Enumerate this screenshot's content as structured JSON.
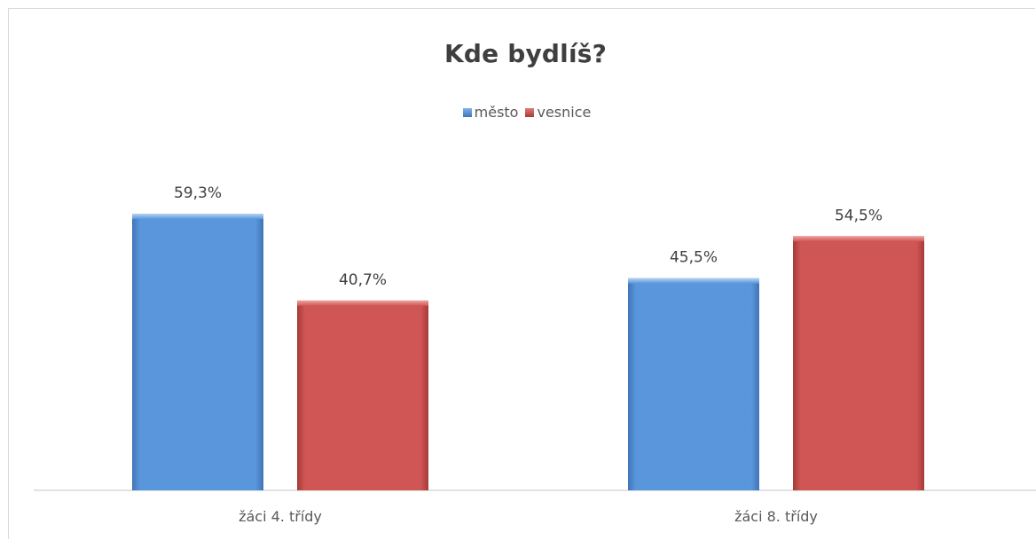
{
  "chart_data": {
    "type": "bar",
    "title": "Kde bydlíš?",
    "xlabel": "",
    "ylabel": "",
    "categories": [
      "žáci 4. třídy",
      "žáci 8. třídy"
    ],
    "series": [
      {
        "name": "město",
        "values": [
          59.3,
          45.5
        ],
        "labels": [
          "59,3%",
          "45,5%"
        ],
        "color": "#5b9bd5"
      },
      {
        "name": "vesnice",
        "values": [
          40.7,
          54.5
        ],
        "labels": [
          "40,7%",
          "54,5%"
        ],
        "color": "#c0504d"
      }
    ],
    "ylim": [
      0,
      100
    ],
    "grid": false,
    "legend_position": "top"
  }
}
